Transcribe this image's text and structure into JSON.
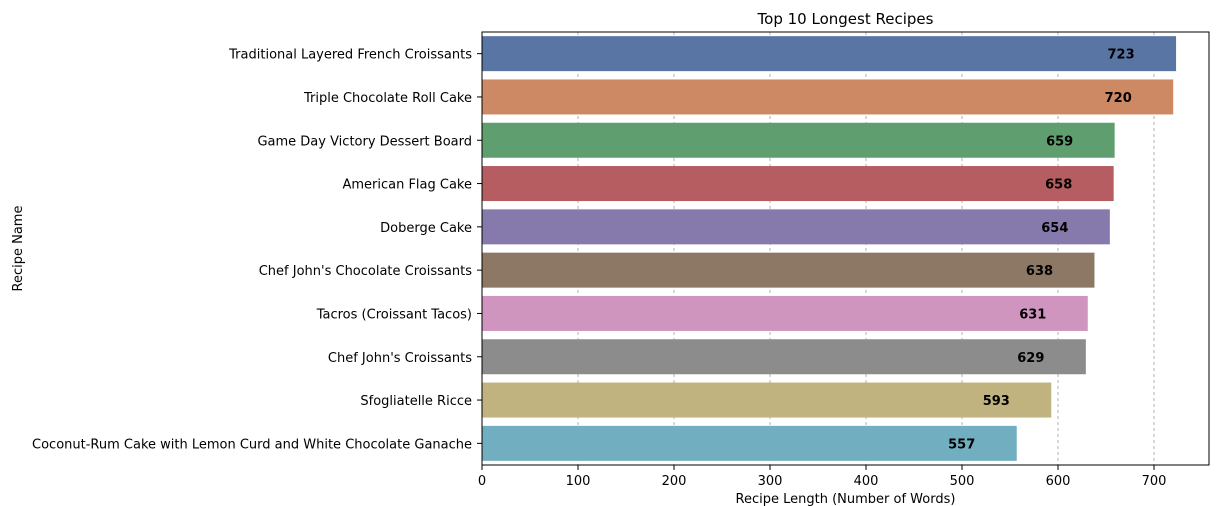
{
  "chart_data": {
    "type": "bar",
    "orientation": "horizontal",
    "title": "Top 10 Longest Recipes",
    "xlabel": "Recipe Length (Number of Words)",
    "ylabel": "Recipe Name",
    "xlim": [
      0,
      760
    ],
    "xticks": [
      "0",
      "100",
      "200",
      "300",
      "400",
      "500",
      "600",
      "700"
    ],
    "grid": "x-dashed",
    "categories": [
      "Traditional Layered French Croissants",
      "Triple Chocolate Roll Cake",
      "Game Day Victory Dessert Board",
      "American Flag Cake",
      "Doberge Cake",
      "Chef John's Chocolate Croissants",
      "Tacros (Croissant Tacos)",
      "Chef John's Croissants",
      "Sfogliatelle Ricce",
      "Coconut-Rum Cake with Lemon Curd and White Chocolate Ganache"
    ],
    "values": [
      723,
      720,
      659,
      658,
      654,
      638,
      631,
      629,
      593,
      557
    ],
    "value_labels": [
      "723",
      "720",
      "659",
      "658",
      "654",
      "638",
      "631",
      "629",
      "593",
      "557"
    ],
    "colors": [
      "#5875a4",
      "#cc8963",
      "#5f9e6e",
      "#b55d60",
      "#857aab",
      "#8d7866",
      "#d095bf",
      "#8c8c8c",
      "#c1b37f",
      "#71aec0"
    ]
  }
}
